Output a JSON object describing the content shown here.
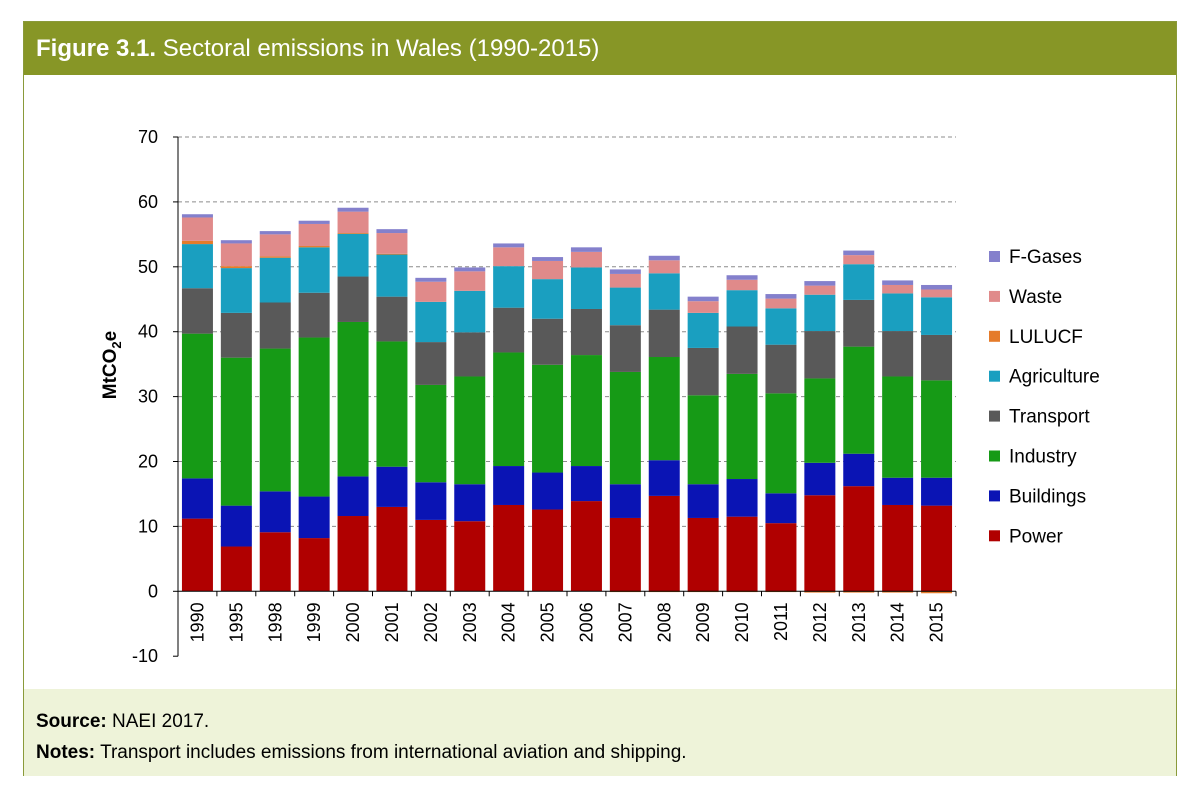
{
  "header": {
    "figure_label": "Figure 3.1.",
    "figure_title": "Sectoral emissions in Wales (1990-2015)"
  },
  "footer": {
    "source_label": "Source:",
    "source_text": "NAEI 2017.",
    "notes_label": "Notes:",
    "notes_text": "Transport includes emissions from international aviation and shipping."
  },
  "chart_data": {
    "type": "bar",
    "stacked": true,
    "title": "",
    "xlabel": "",
    "ylabel_main": "MtCO",
    "ylabel_sub": "2",
    "ylabel_tail": "e",
    "ylim": [
      -10,
      70
    ],
    "yticks": [
      -10,
      0,
      10,
      20,
      30,
      40,
      50,
      60,
      70
    ],
    "grid": true,
    "legend_position": "right",
    "categories": [
      "1990",
      "1995",
      "1998",
      "1999",
      "2000",
      "2001",
      "2002",
      "2003",
      "2004",
      "2005",
      "2006",
      "2007",
      "2008",
      "2009",
      "2010",
      "2011",
      "2012",
      "2013",
      "2014",
      "2015"
    ],
    "series": [
      {
        "name": "Power",
        "color": "#b00000",
        "values": [
          11.2,
          6.9,
          9.1,
          8.2,
          11.6,
          13.0,
          11.0,
          10.8,
          13.3,
          12.6,
          13.9,
          11.3,
          14.7,
          11.3,
          11.5,
          10.5,
          14.8,
          16.2,
          13.3,
          13.2
        ]
      },
      {
        "name": "Buildings",
        "color": "#0a14b4",
        "values": [
          6.2,
          6.3,
          6.3,
          6.4,
          6.1,
          6.2,
          5.8,
          5.7,
          6.0,
          5.7,
          5.4,
          5.2,
          5.5,
          5.2,
          5.8,
          4.6,
          5.0,
          5.0,
          4.2,
          4.3
        ]
      },
      {
        "name": "Industry",
        "color": "#169a16",
        "values": [
          22.3,
          22.8,
          22.0,
          24.5,
          23.8,
          19.3,
          15.0,
          16.6,
          17.5,
          16.6,
          17.1,
          17.3,
          15.9,
          13.7,
          16.2,
          15.4,
          13.0,
          16.5,
          15.6,
          15.0
        ]
      },
      {
        "name": "Transport",
        "color": "#595959",
        "values": [
          7.0,
          6.9,
          7.1,
          6.9,
          7.0,
          6.9,
          6.6,
          6.8,
          6.9,
          7.1,
          7.1,
          7.2,
          7.3,
          7.3,
          7.3,
          7.5,
          7.3,
          7.2,
          7.0,
          7.0
        ]
      },
      {
        "name": "Agriculture",
        "color": "#1a9fc0",
        "values": [
          6.8,
          6.9,
          6.9,
          7.0,
          6.6,
          6.5,
          6.2,
          6.4,
          6.4,
          6.1,
          6.4,
          5.8,
          5.6,
          5.4,
          5.6,
          5.6,
          5.6,
          5.5,
          5.8,
          5.8
        ]
      },
      {
        "name": "LULUCF",
        "color": "#e57b2a",
        "values": [
          0.5,
          0.3,
          0.2,
          0.2,
          0.1,
          0.1,
          0.0,
          0.0,
          0.0,
          0.0,
          0.0,
          -0.1,
          -0.1,
          -0.1,
          -0.1,
          -0.1,
          -0.2,
          -0.2,
          -0.2,
          -0.3
        ]
      },
      {
        "name": "Waste",
        "color": "#e08a8a",
        "values": [
          3.6,
          3.5,
          3.4,
          3.4,
          3.3,
          3.2,
          3.1,
          3.0,
          2.9,
          2.8,
          2.4,
          2.1,
          2.0,
          1.8,
          1.6,
          1.5,
          1.4,
          1.4,
          1.3,
          1.2
        ]
      },
      {
        "name": "F-Gases",
        "color": "#8480cc",
        "values": [
          0.5,
          0.5,
          0.5,
          0.5,
          0.6,
          0.6,
          0.6,
          0.6,
          0.6,
          0.6,
          0.7,
          0.7,
          0.7,
          0.7,
          0.7,
          0.7,
          0.7,
          0.7,
          0.7,
          0.7
        ]
      }
    ]
  }
}
